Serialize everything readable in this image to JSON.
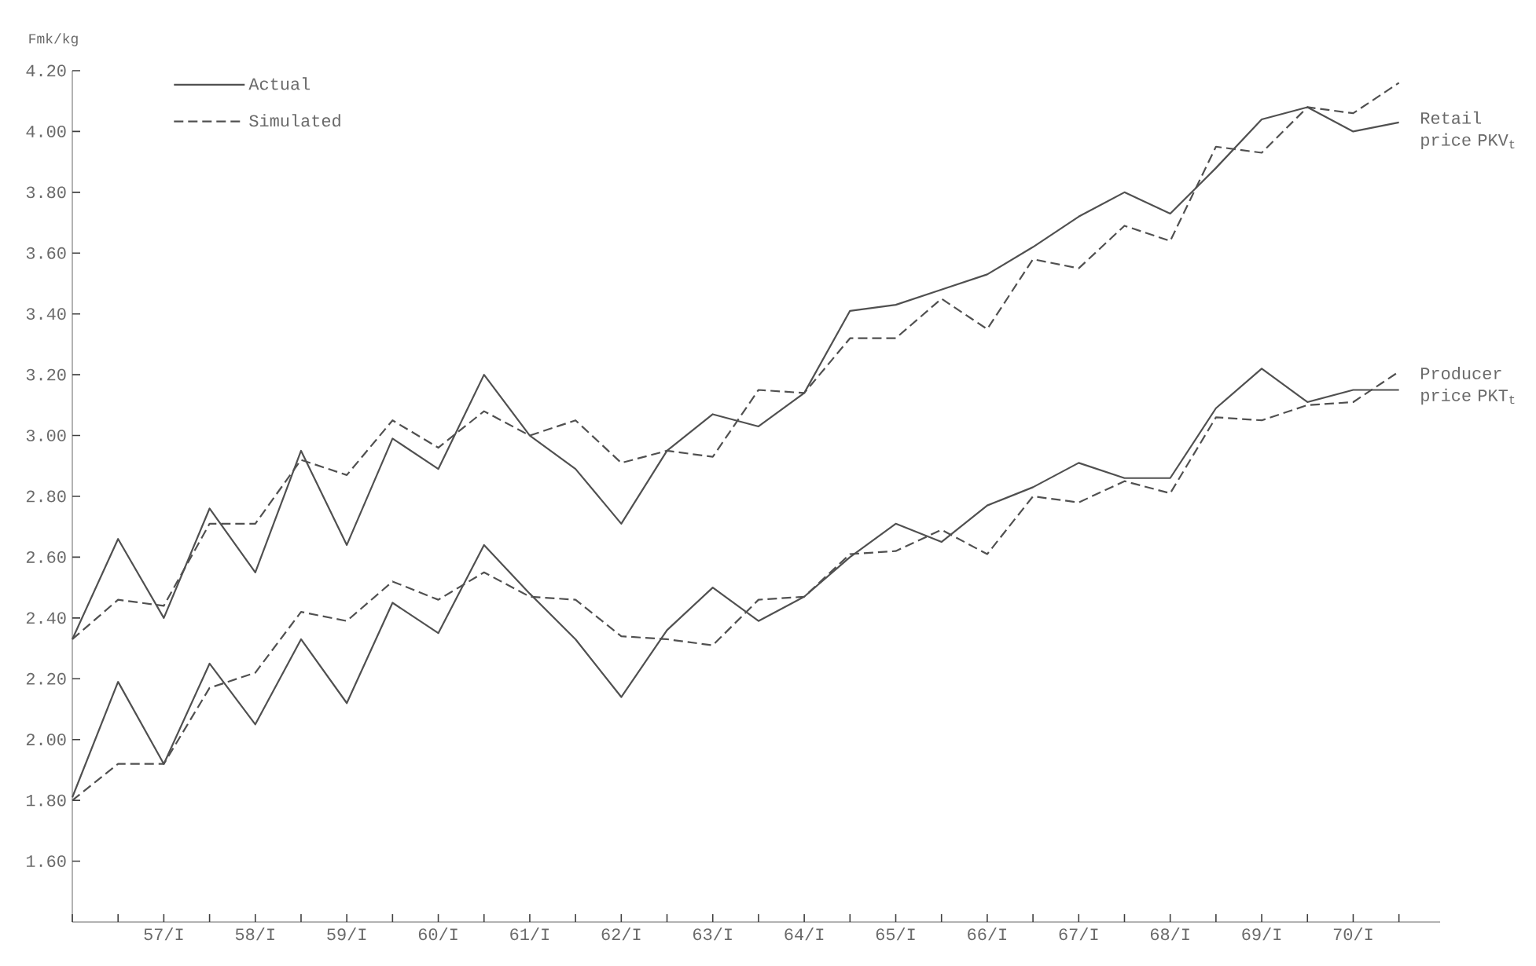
{
  "chart_data": {
    "type": "line",
    "ylabel": "Fmk/kg",
    "categories": [
      null,
      null,
      "57/I",
      null,
      "58/I",
      null,
      "59/I",
      null,
      "60/I",
      null,
      "61/I",
      null,
      "62/I",
      null,
      "63/I",
      null,
      "64/I",
      null,
      "65/I",
      null,
      "66/I",
      null,
      "67/I",
      null,
      "68/I",
      null,
      "69/I",
      null,
      "70/I",
      null
    ],
    "series": [
      {
        "name": "Actual",
        "color": "#505050",
        "line_style": "solid",
        "values": [
          2.33,
          2.66,
          2.4,
          2.76,
          2.55,
          2.95,
          2.64,
          2.99,
          2.89,
          3.2,
          3.0,
          2.89,
          2.71,
          2.95,
          3.07,
          3.03,
          3.14,
          3.41,
          3.43,
          3.48,
          3.53,
          3.62,
          3.72,
          3.8,
          3.73,
          3.88,
          4.04,
          4.08,
          4.0,
          4.03
        ]
      },
      {
        "name": "Simulated",
        "color": "#505050",
        "line_style": "dashed",
        "values": [
          2.33,
          2.46,
          2.44,
          2.71,
          2.71,
          2.92,
          2.87,
          3.05,
          2.96,
          3.08,
          3.0,
          3.05,
          2.91,
          2.95,
          2.93,
          3.15,
          3.14,
          3.32,
          3.32,
          3.45,
          3.35,
          3.58,
          3.55,
          3.69,
          3.64,
          3.95,
          3.93,
          4.08,
          4.06,
          4.16
        ]
      },
      {
        "color": "#505050",
        "line_style": "solid",
        "values": [
          1.81,
          2.19,
          1.92,
          2.25,
          2.05,
          2.33,
          2.12,
          2.45,
          2.35,
          2.64,
          2.48,
          2.33,
          2.14,
          2.36,
          2.5,
          2.39,
          2.47,
          2.6,
          2.71,
          2.65,
          2.77,
          2.83,
          2.91,
          2.86,
          2.86,
          3.09,
          3.22,
          3.11,
          3.15,
          3.15
        ]
      },
      {
        "color": "#505050",
        "line_style": "dashed",
        "values": [
          1.8,
          1.92,
          1.92,
          2.17,
          2.22,
          2.42,
          2.39,
          2.52,
          2.46,
          2.55,
          2.47,
          2.46,
          2.34,
          2.33,
          2.31,
          2.46,
          2.47,
          2.61,
          2.62,
          2.69,
          2.61,
          2.8,
          2.78,
          2.85,
          2.81,
          3.06,
          3.05,
          3.1,
          3.11,
          3.21
        ]
      }
    ],
    "ylim": [
      1.4,
      4.2
    ],
    "yticks": [
      {
        "value": 1.6,
        "label": "1.60"
      },
      {
        "value": 1.8,
        "label": "1.80"
      },
      {
        "value": 2.0,
        "label": "2.00"
      },
      {
        "value": 2.2,
        "label": "2.20"
      },
      {
        "value": 2.4,
        "label": "2.40"
      },
      {
        "value": 2.6,
        "label": "2.60"
      },
      {
        "value": 2.8,
        "label": "2.80"
      },
      {
        "value": 3.0,
        "label": "3.00"
      },
      {
        "value": 3.2,
        "label": "3.20"
      },
      {
        "value": 3.4,
        "label": "3.40"
      },
      {
        "value": 3.6,
        "label": "3.60"
      },
      {
        "value": 3.8,
        "label": "3.80"
      },
      {
        "value": 4.0,
        "label": "4.00"
      },
      {
        "value": 4.2,
        "label": "4.20"
      }
    ],
    "legend": "top left",
    "annotations": [
      "Retail price PKV$_{t}$",
      "Producer price PKT$_{t}$"
    ]
  }
}
